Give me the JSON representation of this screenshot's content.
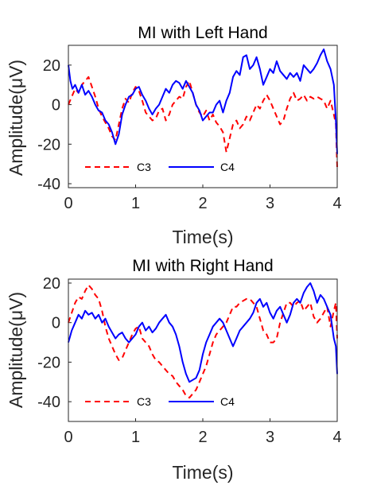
{
  "chart_data": [
    {
      "type": "line",
      "title": "MI with Left Hand",
      "xlabel": "Time(s)",
      "ylabel": "Amplitude(μV)",
      "xlim": [
        0,
        4
      ],
      "ylim": [
        -42,
        30
      ],
      "xticks": [
        0,
        1,
        2,
        3,
        4
      ],
      "yticks": [
        20,
        0,
        -20,
        -40
      ],
      "grid": false,
      "legend_position": "bottom-left",
      "series": [
        {
          "name": "C3",
          "color": "#ff0000",
          "style": "dashed",
          "x": [
            0,
            0.05,
            0.1,
            0.15,
            0.2,
            0.25,
            0.3,
            0.35,
            0.4,
            0.45,
            0.5,
            0.55,
            0.6,
            0.65,
            0.7,
            0.75,
            0.8,
            0.85,
            0.9,
            0.95,
            1.0,
            1.05,
            1.1,
            1.15,
            1.2,
            1.25,
            1.3,
            1.35,
            1.4,
            1.45,
            1.5,
            1.55,
            1.6,
            1.65,
            1.7,
            1.75,
            1.8,
            1.85,
            1.9,
            1.95,
            2.0,
            2.05,
            2.1,
            2.15,
            2.2,
            2.25,
            2.3,
            2.35,
            2.4,
            2.45,
            2.5,
            2.55,
            2.6,
            2.65,
            2.7,
            2.75,
            2.8,
            2.85,
            2.9,
            2.95,
            3.0,
            3.05,
            3.1,
            3.15,
            3.2,
            3.25,
            3.3,
            3.35,
            3.4,
            3.45,
            3.5,
            3.55,
            3.6,
            3.65,
            3.7,
            3.75,
            3.8,
            3.85,
            3.9,
            3.95,
            3.98,
            4.0
          ],
          "values": [
            0,
            4,
            8,
            6,
            10,
            12,
            14,
            9,
            4,
            -2,
            -6,
            -9,
            -12,
            -16,
            -18,
            -10,
            -2,
            3,
            1,
            6,
            9,
            7,
            2,
            -4,
            -6,
            -8,
            -7,
            -3,
            -2,
            -8,
            -5,
            0,
            2,
            4,
            3,
            9,
            12,
            6,
            0,
            -4,
            -6,
            -3,
            -8,
            -5,
            -9,
            -11,
            -14,
            -24,
            -17,
            -10,
            -8,
            -12,
            -10,
            -6,
            -8,
            -4,
            0,
            -2,
            2,
            5,
            2,
            -2,
            -6,
            -10,
            -8,
            -2,
            3,
            6,
            2,
            3,
            5,
            2,
            4,
            3,
            4,
            3,
            2,
            -2,
            2,
            -5,
            -10,
            -32
          ]
        },
        {
          "name": "C4",
          "color": "#0000ff",
          "style": "solid",
          "x": [
            0,
            0.03,
            0.06,
            0.1,
            0.15,
            0.2,
            0.25,
            0.3,
            0.35,
            0.4,
            0.45,
            0.5,
            0.55,
            0.6,
            0.65,
            0.7,
            0.75,
            0.8,
            0.85,
            0.9,
            0.95,
            1.0,
            1.05,
            1.1,
            1.15,
            1.2,
            1.25,
            1.3,
            1.35,
            1.4,
            1.45,
            1.5,
            1.55,
            1.6,
            1.65,
            1.7,
            1.75,
            1.8,
            1.85,
            1.9,
            1.95,
            2.0,
            2.05,
            2.1,
            2.15,
            2.2,
            2.25,
            2.3,
            2.35,
            2.4,
            2.45,
            2.5,
            2.55,
            2.6,
            2.65,
            2.7,
            2.75,
            2.8,
            2.85,
            2.9,
            2.95,
            3.0,
            3.05,
            3.1,
            3.15,
            3.2,
            3.25,
            3.3,
            3.35,
            3.4,
            3.45,
            3.5,
            3.55,
            3.6,
            3.65,
            3.7,
            3.75,
            3.8,
            3.85,
            3.9,
            3.95,
            3.98,
            4.0
          ],
          "values": [
            20,
            12,
            8,
            10,
            6,
            10,
            5,
            7,
            4,
            0,
            -3,
            -4,
            -8,
            -10,
            -14,
            -20,
            -15,
            -5,
            0,
            4,
            5,
            8,
            9,
            5,
            2,
            -2,
            -5,
            -2,
            0,
            4,
            8,
            6,
            10,
            12,
            11,
            8,
            12,
            9,
            6,
            0,
            -3,
            -8,
            -6,
            -4,
            -4,
            0,
            2,
            -4,
            2,
            6,
            14,
            17,
            15,
            24,
            25,
            18,
            20,
            24,
            18,
            10,
            14,
            18,
            16,
            22,
            17,
            15,
            13,
            16,
            14,
            16,
            12,
            20,
            18,
            16,
            18,
            21,
            25,
            28,
            22,
            18,
            10,
            -8,
            -25
          ]
        }
      ]
    },
    {
      "type": "line",
      "title": "MI with Right Hand",
      "xlabel": "Time(s)",
      "ylabel": "Amplitude(μV)",
      "xlim": [
        0,
        4
      ],
      "ylim": [
        -50,
        22
      ],
      "xticks": [
        0,
        1,
        2,
        3,
        4
      ],
      "yticks": [
        20,
        0,
        -20,
        -40
      ],
      "grid": false,
      "legend_position": "bottom-left",
      "series": [
        {
          "name": "C3",
          "color": "#ff0000",
          "style": "dashed",
          "x": [
            0,
            0.05,
            0.1,
            0.15,
            0.2,
            0.25,
            0.3,
            0.35,
            0.4,
            0.45,
            0.5,
            0.55,
            0.6,
            0.65,
            0.7,
            0.75,
            0.8,
            0.85,
            0.9,
            0.95,
            1.0,
            1.05,
            1.1,
            1.15,
            1.2,
            1.25,
            1.3,
            1.35,
            1.4,
            1.45,
            1.5,
            1.55,
            1.6,
            1.65,
            1.7,
            1.75,
            1.8,
            1.85,
            1.9,
            1.95,
            2.0,
            2.05,
            2.1,
            2.15,
            2.2,
            2.25,
            2.3,
            2.35,
            2.4,
            2.45,
            2.5,
            2.55,
            2.6,
            2.65,
            2.7,
            2.75,
            2.8,
            2.85,
            2.9,
            2.95,
            3.0,
            3.05,
            3.1,
            3.15,
            3.2,
            3.25,
            3.3,
            3.35,
            3.4,
            3.45,
            3.5,
            3.55,
            3.6,
            3.65,
            3.7,
            3.75,
            3.8,
            3.85,
            3.9,
            3.95,
            3.98,
            4.0
          ],
          "values": [
            0,
            5,
            10,
            13,
            12,
            16,
            19,
            17,
            14,
            12,
            6,
            -2,
            -8,
            -12,
            -16,
            -19,
            -18,
            -14,
            -10,
            -6,
            -3,
            -2,
            -8,
            -10,
            -12,
            -16,
            -19,
            -20,
            -22,
            -24,
            -26,
            -27,
            -30,
            -32,
            -34,
            -37,
            -38,
            -36,
            -34,
            -30,
            -26,
            -22,
            -16,
            -10,
            -6,
            -4,
            -2,
            0,
            4,
            8,
            8,
            10,
            11,
            12,
            12,
            10,
            8,
            2,
            -4,
            -6,
            -10,
            -10,
            -8,
            0,
            5,
            10,
            10,
            8,
            10,
            11,
            6,
            8,
            10,
            3,
            0,
            2,
            5,
            8,
            -2,
            6,
            10,
            -8
          ]
        },
        {
          "name": "C4",
          "color": "#0000ff",
          "style": "solid",
          "x": [
            0,
            0.05,
            0.1,
            0.15,
            0.2,
            0.25,
            0.3,
            0.35,
            0.4,
            0.45,
            0.5,
            0.55,
            0.6,
            0.65,
            0.7,
            0.75,
            0.8,
            0.85,
            0.9,
            0.95,
            1.0,
            1.05,
            1.1,
            1.15,
            1.2,
            1.25,
            1.3,
            1.35,
            1.4,
            1.45,
            1.5,
            1.55,
            1.6,
            1.65,
            1.7,
            1.75,
            1.8,
            1.85,
            1.9,
            1.95,
            2.0,
            2.05,
            2.1,
            2.15,
            2.2,
            2.25,
            2.3,
            2.35,
            2.4,
            2.45,
            2.5,
            2.55,
            2.6,
            2.65,
            2.7,
            2.75,
            2.8,
            2.85,
            2.9,
            2.95,
            3.0,
            3.05,
            3.1,
            3.15,
            3.2,
            3.25,
            3.3,
            3.35,
            3.4,
            3.45,
            3.5,
            3.55,
            3.6,
            3.65,
            3.7,
            3.75,
            3.8,
            3.85,
            3.9,
            3.95,
            3.98,
            4.0
          ],
          "values": [
            -10,
            -4,
            0,
            4,
            2,
            6,
            4,
            5,
            2,
            4,
            0,
            2,
            -2,
            -5,
            -8,
            -6,
            -5,
            -8,
            -10,
            -8,
            -6,
            -2,
            0,
            -4,
            -2,
            -5,
            -3,
            0,
            2,
            4,
            0,
            -2,
            -6,
            -12,
            -20,
            -26,
            -30,
            -29,
            -28,
            -24,
            -16,
            -10,
            -6,
            -2,
            0,
            2,
            0,
            -4,
            -8,
            -12,
            -8,
            -4,
            -2,
            0,
            2,
            5,
            10,
            12,
            8,
            10,
            5,
            2,
            6,
            8,
            4,
            0,
            4,
            10,
            12,
            10,
            15,
            18,
            20,
            16,
            10,
            14,
            12,
            8,
            4,
            -8,
            -12,
            -26
          ]
        }
      ]
    }
  ]
}
